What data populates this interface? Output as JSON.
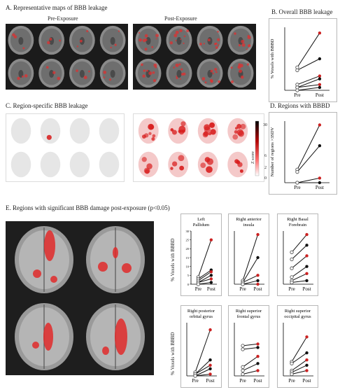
{
  "sections": {
    "A": {
      "title": "A. Representative maps of BBB leakage",
      "pre_label": "Pre-Exposure",
      "post_label": "Post-Exposure"
    },
    "B": {
      "title": "B. Overall BBB leakage"
    },
    "C": {
      "title": "C. Region-specific BBB leakage",
      "colorbar_label": "Z score",
      "colorbar_ticks": [
        "30",
        "6",
        "2",
        "0"
      ]
    },
    "D": {
      "title": "D. Regions with BBBD"
    },
    "E": {
      "title": "E. Regions with significant BBB damage post-exposure (p<0.05)"
    }
  },
  "colors": {
    "pre": "#555555",
    "post_red": "#cc2222",
    "post_dark": "#111111",
    "heat": "#e03030"
  },
  "chart_data": [
    {
      "type": "line",
      "panel": "B",
      "title": "",
      "ylabel": "% Voxels with BBBD",
      "categories": [
        "Pre",
        "Post"
      ],
      "series": [
        {
          "values": [
            8,
            20
          ]
        },
        {
          "values": [
            7,
            11
          ]
        },
        {
          "values": [
            2,
            5
          ]
        },
        {
          "values": [
            1,
            4
          ]
        },
        {
          "values": [
            1,
            2
          ]
        },
        {
          "values": [
            0,
            1
          ]
        }
      ]
    },
    {
      "type": "line",
      "panel": "D",
      "title": "",
      "ylabel": "Number of regions >3SDV",
      "categories": [
        "Pre",
        "Post"
      ],
      "series": [
        {
          "values": [
            17,
            75
          ]
        },
        {
          "values": [
            14,
            48
          ]
        },
        {
          "values": [
            0,
            6
          ]
        },
        {
          "values": [
            0,
            0
          ]
        }
      ]
    },
    {
      "type": "line",
      "panel": "E1",
      "title": "Left Pallidum",
      "ylabel": "% Voxels with BBBD",
      "yticks": [
        "0",
        "5",
        "10",
        "15",
        "20",
        "25",
        "30"
      ],
      "categories": [
        "Pre",
        "Post"
      ],
      "series": [
        {
          "values": [
            4,
            25
          ]
        },
        {
          "values": [
            3,
            8
          ]
        },
        {
          "values": [
            2,
            7
          ]
        },
        {
          "values": [
            1,
            5
          ]
        },
        {
          "values": [
            1,
            3
          ]
        },
        {
          "values": [
            0,
            1
          ]
        }
      ]
    },
    {
      "type": "line",
      "panel": "E2",
      "title": "Right anterior insula",
      "categories": [
        "Pre",
        "Post"
      ],
      "series": [
        {
          "values": [
            2,
            28
          ]
        },
        {
          "values": [
            1,
            15
          ]
        },
        {
          "values": [
            1,
            5
          ]
        },
        {
          "values": [
            0,
            2
          ]
        },
        {
          "values": [
            0,
            0
          ]
        }
      ]
    },
    {
      "type": "line",
      "panel": "E3",
      "title": "Right Basal Forebrain",
      "categories": [
        "Pre",
        "Post"
      ],
      "series": [
        {
          "values": [
            18,
            28
          ]
        },
        {
          "values": [
            14,
            22
          ]
        },
        {
          "values": [
            9,
            16
          ]
        },
        {
          "values": [
            4,
            10
          ]
        },
        {
          "values": [
            2,
            6
          ]
        },
        {
          "values": [
            1,
            2
          ]
        }
      ]
    },
    {
      "type": "line",
      "panel": "E4",
      "title": "Right posterior orbital gyrus",
      "ylabel": "% Voxels with BBBD",
      "categories": [
        "Pre",
        "Post"
      ],
      "series": [
        {
          "values": [
            2,
            26
          ]
        },
        {
          "values": [
            1,
            9
          ]
        },
        {
          "values": [
            1,
            6
          ]
        },
        {
          "values": [
            0,
            4
          ]
        },
        {
          "values": [
            0,
            1
          ]
        }
      ]
    },
    {
      "type": "line",
      "panel": "E5",
      "title": "Right superior frontal gyrus",
      "categories": [
        "Pre",
        "Post"
      ],
      "series": [
        {
          "values": [
            17,
            18
          ]
        },
        {
          "values": [
            15,
            16
          ]
        },
        {
          "values": [
            5,
            11
          ]
        },
        {
          "values": [
            3,
            7
          ]
        },
        {
          "values": [
            1,
            3
          ]
        }
      ]
    },
    {
      "type": "line",
      "panel": "E6",
      "title": "Right superior occipital gyrus",
      "categories": [
        "Pre",
        "Post"
      ],
      "series": [
        {
          "values": [
            8,
            22
          ]
        },
        {
          "values": [
            7,
            13
          ]
        },
        {
          "values": [
            3,
            9
          ]
        },
        {
          "values": [
            2,
            6
          ]
        },
        {
          "values": [
            1,
            3
          ]
        }
      ]
    }
  ]
}
